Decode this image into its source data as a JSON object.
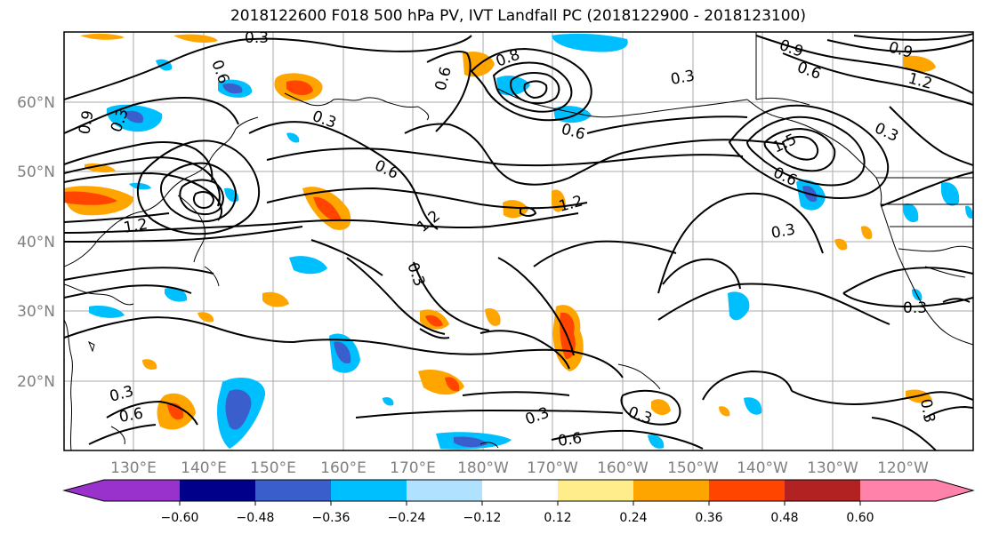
{
  "title": "2018122600 F018 500 hPa PV, IVT Landfall PC (2018122900 - 2018123100)",
  "map": {
    "lat_labels": [
      "60°N",
      "50°N",
      "40°N",
      "30°N",
      "20°N"
    ],
    "lon_labels": [
      "130°E",
      "140°E",
      "150°E",
      "160°E",
      "170°E",
      "180°W",
      "170°W",
      "160°W",
      "150°W",
      "140°W",
      "130°W",
      "120°W"
    ],
    "contour_labels": [
      "0.3",
      "0.6",
      "0.3",
      "0.9",
      "0.6",
      "0.8",
      "0.3",
      "0.6",
      "1.2",
      "0.3",
      "0.3",
      "0.6",
      "1.2",
      "0.9",
      "0.6",
      "0.3",
      "0.3",
      "0.6",
      "1.5",
      "1.2",
      "0.9",
      "0.3",
      "0.6",
      "1.2",
      "0.3",
      "0.3",
      "0.6",
      "0.3",
      "0.3"
    ]
  },
  "colorbar": {
    "ticks": [
      "−0.60",
      "−0.48",
      "−0.36",
      "−0.24",
      "−0.12",
      "0.12",
      "0.24",
      "0.36",
      "0.48",
      "0.60"
    ],
    "colors": [
      "#9932cc",
      "#00008b",
      "#3a5fcd",
      "#00bfff",
      "#b0e2ff",
      "#ffffff",
      "#ffec8b",
      "#ffa500",
      "#ff4500",
      "#b22222",
      "#ff82ab"
    ]
  }
}
